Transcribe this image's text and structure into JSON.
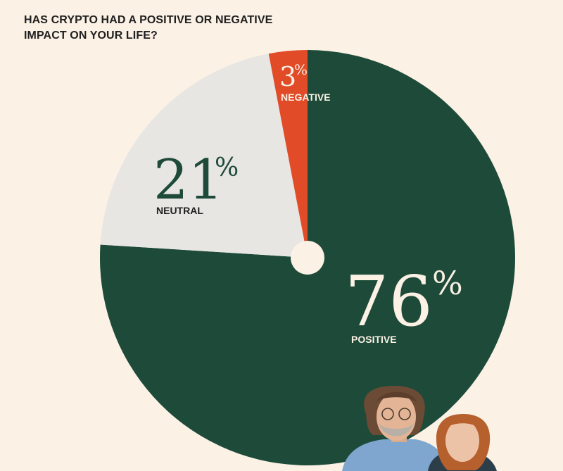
{
  "title_lines": [
    "HAS CRYPTO HAD A POSITIVE OR NEGATIVE",
    "IMPACT ON YOUR LIFE?"
  ],
  "colors": {
    "background": "#FBF1E5",
    "positive": "#1D4A39",
    "neutral": "#E8E6E3",
    "negative": "#E14B27",
    "center": "#FBF1E5"
  },
  "chart_data": {
    "type": "pie",
    "title": "HAS CRYPTO HAD A POSITIVE OR NEGATIVE IMPACT ON YOUR LIFE?",
    "start": "12 o'clock, clockwise",
    "slices": [
      {
        "label": "POSITIVE",
        "value": 76,
        "display": "76",
        "unit": "%",
        "color": "#1D4A39"
      },
      {
        "label": "NEUTRAL",
        "value": 21,
        "display": "21",
        "unit": "%",
        "color": "#E8E6E3"
      },
      {
        "label": "NEGATIVE",
        "value": 3,
        "display": "3",
        "unit": "%",
        "color": "#E14B27"
      }
    ]
  }
}
